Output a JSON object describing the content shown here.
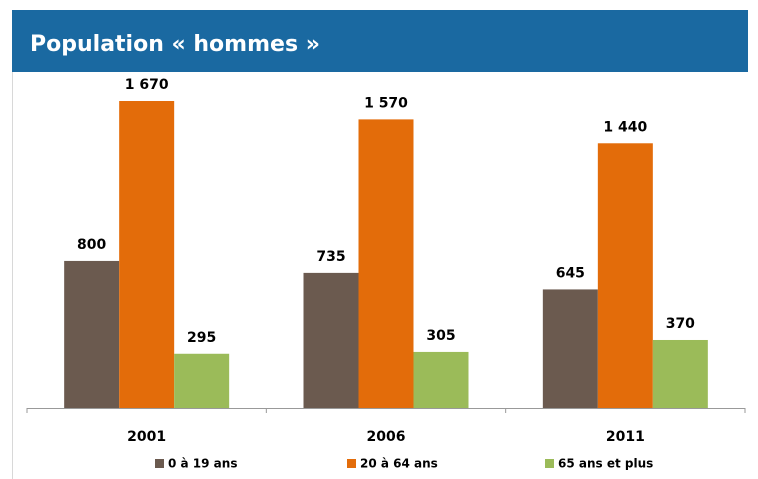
{
  "chart_data": {
    "type": "bar",
    "title": "Population « hommes »",
    "categories": [
      "2001",
      "2006",
      "2011"
    ],
    "series": [
      {
        "name": "0 à 19 ans",
        "color": "#6b5a4f",
        "values": [
          800,
          735,
          645
        ]
      },
      {
        "name": "20 à 64 ans",
        "color": "#e36c0a",
        "values": [
          1670,
          1570,
          1440
        ],
        "value_labels": [
          "1 670",
          "1 570",
          "1 440"
        ]
      },
      {
        "name": "65 ans et plus",
        "color": "#9bbb59",
        "values": [
          295,
          305,
          370
        ]
      }
    ]
  }
}
